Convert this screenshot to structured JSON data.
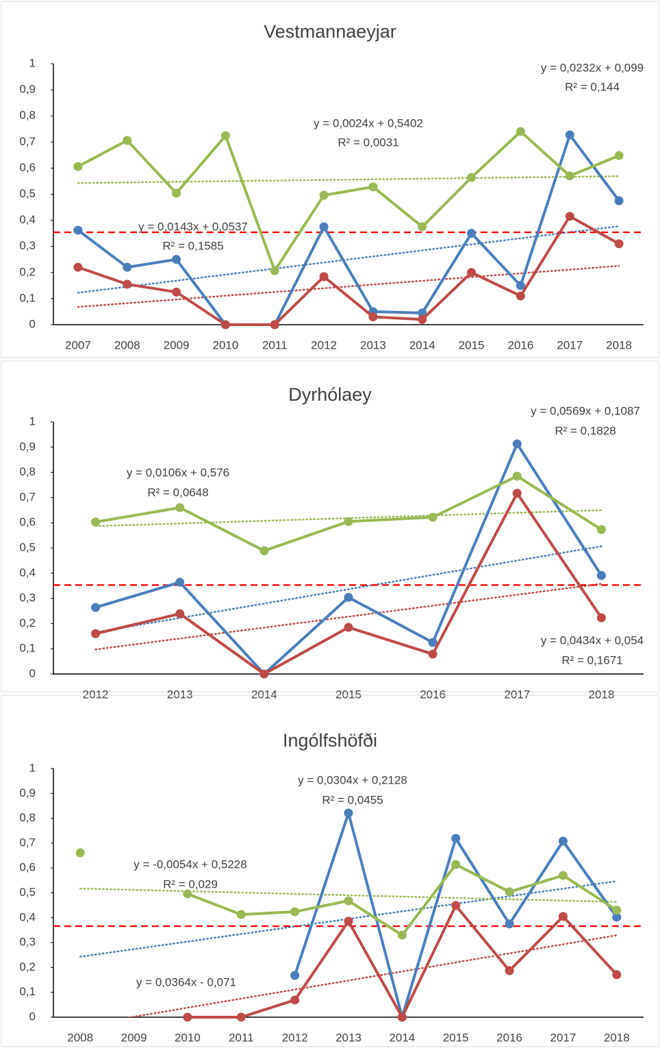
{
  "chart_data": [
    {
      "type": "line",
      "title": "Vestmannaeyjar",
      "categories": [
        "2007",
        "2008",
        "2009",
        "2010",
        "2011",
        "2012",
        "2013",
        "2014",
        "2015",
        "2016",
        "2017",
        "2018"
      ],
      "ylim": [
        0,
        1
      ],
      "yticks": [
        0,
        {
          "value": 0.1,
          "label": "0,1"
        },
        {
          "value": 0.2,
          "label": "0,2"
        },
        {
          "value": 0.3,
          "label": "0,3"
        },
        {
          "value": 0.4,
          "label": "0,4"
        },
        {
          "value": 0.5,
          "label": "0,5"
        },
        {
          "value": 0.6,
          "label": "0,6"
        },
        {
          "value": 0.7,
          "label": "0,7"
        },
        {
          "value": 0.8,
          "label": "0,8"
        },
        {
          "value": 0.9,
          "label": "0,9"
        },
        1
      ],
      "threshold": 0.354,
      "threshold_color": "#ff0000",
      "series": [
        {
          "color": "#4a7ebb",
          "values": [
            0.362,
            0.22,
            0.25,
            0,
            0,
            0.375,
            0.05,
            0.045,
            0.35,
            0.15,
            0.727,
            0.475
          ],
          "trend": {
            "slope": 0.0232,
            "intercept": 0.099,
            "label": "y = 0,0232x + 0,099",
            "r2_label": "R² = 0,144"
          }
        },
        {
          "color": "#be4b48",
          "values": [
            0.22,
            0.155,
            0.125,
            0,
            0,
            0.184,
            0.03,
            0.02,
            0.2,
            0.11,
            0.415,
            0.31
          ],
          "trend": {
            "slope": 0.0143,
            "intercept": 0.0537,
            "label": "y = 0,0143x + 0,0537",
            "r2_label": "R² = 0,1585"
          }
        },
        {
          "color": "#98b954",
          "values": [
            0.606,
            0.706,
            0.504,
            0.724,
            0.207,
            0.496,
            0.528,
            0.375,
            0.564,
            0.74,
            0.57,
            0.648
          ],
          "trend": {
            "slope": 0.0024,
            "intercept": 0.5402,
            "label": "y = 0,0024x + 0,5402",
            "r2_label": "R² = 0,0031"
          }
        }
      ]
    },
    {
      "type": "line",
      "title": "Dyrhólaey",
      "categories": [
        "2012",
        "2013",
        "2014",
        "2015",
        "2016",
        "2017",
        "2018"
      ],
      "ylim": [
        0,
        1
      ],
      "yticks": [
        0,
        {
          "value": 0.1,
          "label": "0,1"
        },
        {
          "value": 0.2,
          "label": "0,2"
        },
        {
          "value": 0.3,
          "label": "0,3"
        },
        {
          "value": 0.4,
          "label": "0,4"
        },
        {
          "value": 0.5,
          "label": "0,5"
        },
        {
          "value": 0.6,
          "label": "0,6"
        },
        {
          "value": 0.7,
          "label": "0,7"
        },
        {
          "value": 0.8,
          "label": "0,8"
        },
        {
          "value": 0.9,
          "label": "0,9"
        },
        1
      ],
      "threshold": 0.353,
      "threshold_color": "#ff0000",
      "series": [
        {
          "color": "#4a7ebb",
          "values": [
            0.264,
            0.364,
            0,
            0.304,
            0.125,
            0.913,
            0.391
          ],
          "trend": {
            "slope": 0.0569,
            "intercept": 0.1087,
            "label": "y = 0,0569x + 0,1087",
            "r2_label": "R² = 0,1828"
          }
        },
        {
          "color": "#be4b48",
          "values": [
            0.16,
            0.239,
            0,
            0.185,
            0.079,
            0.717,
            0.223
          ],
          "trend": {
            "slope": 0.0434,
            "intercept": 0.054,
            "label": "y = 0,0434x + 0,054",
            "r2_label": "R² = 0,1671"
          }
        },
        {
          "color": "#98b954",
          "values": [
            0.603,
            0.66,
            0.489,
            0.605,
            0.622,
            0.785,
            0.573
          ],
          "trend": {
            "slope": 0.0106,
            "intercept": 0.576,
            "label": "y = 0,0106x + 0,576",
            "r2_label": "R² = 0,0648"
          }
        }
      ]
    },
    {
      "type": "line",
      "title": "Ingólfshöfði",
      "categories": [
        "2008",
        "2009",
        "2010",
        "2011",
        "2012",
        "2013",
        "2014",
        "2015",
        "2016",
        "2017",
        "2018"
      ],
      "ylim": [
        0,
        1
      ],
      "yticks": [
        0,
        {
          "value": 0.1,
          "label": "0,1"
        },
        {
          "value": 0.2,
          "label": "0,2"
        },
        {
          "value": 0.3,
          "label": "0,3"
        },
        {
          "value": 0.4,
          "label": "0,4"
        },
        {
          "value": 0.5,
          "label": "0,5"
        },
        {
          "value": 0.6,
          "label": "0,6"
        },
        {
          "value": 0.7,
          "label": "0,7"
        },
        {
          "value": 0.8,
          "label": "0,8"
        },
        {
          "value": 0.9,
          "label": "0,9"
        },
        1
      ],
      "threshold": 0.366,
      "threshold_color": "#ff0000",
      "series": [
        {
          "color": "#4a7ebb",
          "values": [
            null,
            null,
            null,
            null,
            0.168,
            0.821,
            0,
            0.719,
            0.375,
            0.708,
            0.402
          ],
          "trend": {
            "slope": 0.0304,
            "intercept": 0.2128,
            "label": "y = 0,0304x + 0,2128",
            "r2_label": "R² = 0,0455"
          }
        },
        {
          "color": "#be4b48",
          "values": [
            null,
            null,
            0,
            0,
            0.069,
            0.386,
            0,
            0.449,
            0.187,
            0.405,
            0.171
          ],
          "trend": {
            "slope": 0.0364,
            "intercept": -0.071,
            "label": "y = 0,0364x - 0,071"
          }
        },
        {
          "color": "#98b954",
          "values": [
            0.661,
            null,
            0.496,
            0.413,
            0.424,
            0.468,
            0.33,
            0.614,
            0.504,
            0.57,
            0.43
          ],
          "trend": {
            "slope": -0.0054,
            "intercept": 0.5228,
            "label": "y = -0,0054x + 0,5228",
            "r2_label": "R² = 0,029"
          }
        }
      ]
    }
  ]
}
